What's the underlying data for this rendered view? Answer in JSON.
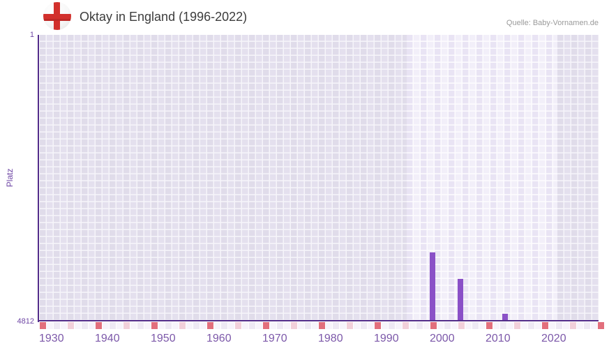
{
  "header": {
    "title": "Oktay in England (1996-2022)",
    "source": "Quelle: Baby-Vornamen.de",
    "flag_icon": "england-flag"
  },
  "chart_data": {
    "type": "bar",
    "title": "Oktay in England (1996-2022)",
    "xlabel": "",
    "ylabel": "Platz",
    "y_axis_inverted": true,
    "ylim": [
      1,
      4812
    ],
    "xlim": [
      1930,
      2031
    ],
    "x_ticks": [
      1930,
      1940,
      1950,
      1960,
      1970,
      1980,
      1990,
      2000,
      2010,
      2020
    ],
    "y_ticks": [
      1,
      4812
    ],
    "data_period": {
      "start": 1996,
      "end": 2022
    },
    "bars": [
      {
        "year": 2000,
        "rank": 3670
      },
      {
        "year": 2005,
        "rank": 4120
      },
      {
        "year": 2013,
        "rank": 4812
      }
    ],
    "grid": "on",
    "legend_position": "none"
  },
  "colors": {
    "bar": "#8a50c7",
    "axis_line": "#532d8a",
    "tick_text": "#7c58a9",
    "y_text": "#6f47a5",
    "title_text": "#3c3c3c",
    "source_text": "#9a9a9a",
    "strip_decade": "#e26f7c",
    "strip_half_decade": "#f2d0da",
    "strip_cell_even": "#eee9f4",
    "strip_cell_odd": "#f7f4fb",
    "flag_cross": "#d2302c"
  }
}
